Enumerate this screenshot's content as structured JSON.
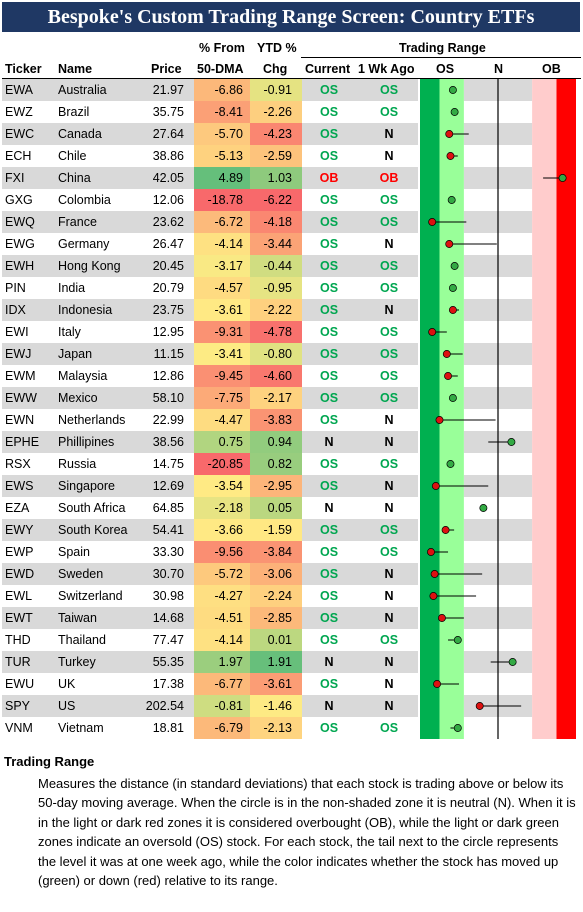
{
  "title": "Bespoke's Custom Trading Range Screen: Country ETFs",
  "headers": {
    "ticker": "Ticker",
    "name": "Name",
    "price": "Price",
    "from50_top": "% From",
    "from50_bottom": "50-DMA",
    "ytd_top": "YTD %",
    "ytd_bottom": "Chg",
    "range_group": "Trading Range",
    "current": "Current",
    "wk_ago": "1 Wk Ago",
    "os": "OS",
    "n": "N",
    "ob": "OB"
  },
  "colors": {
    "title_bg": "#1f3864",
    "dark_green": "#00b050",
    "light_green": "#99ff99",
    "light_red": "#ffcccc",
    "dark_red": "#ff0000",
    "dot_up": "#33aa44",
    "dot_down": "#dd1111",
    "os_text": "#00a650",
    "ob_text": "#ff0000",
    "row_shade": "#d9d9d9"
  },
  "chart_data": {
    "type": "table",
    "columns": [
      "Ticker",
      "Name",
      "Price",
      "% From 50-DMA",
      "YTD % Chg",
      "Current",
      "1 Wk Ago",
      "Trading Range Current",
      "Trading Range 1 Wk Ago"
    ],
    "range_axis": {
      "min": -3.2,
      "max": 3.2,
      "zones": {
        "dark_green": [
          -3.2,
          -2.4
        ],
        "light_green": [
          -2.4,
          -1.4
        ],
        "neutral": [
          -1.4,
          1.4
        ],
        "light_red": [
          1.4,
          2.4
        ],
        "dark_red": [
          2.4,
          3.2
        ]
      }
    },
    "rows": [
      {
        "ticker": "EWA",
        "name": "Australia",
        "price": "21.97",
        "from50": "-6.86",
        "ytd": "-0.91",
        "cur": "OS",
        "wk": "OS",
        "pos": -1.85,
        "wk_pos": -1.85
      },
      {
        "ticker": "EWZ",
        "name": "Brazil",
        "price": "35.75",
        "from50": "-8.41",
        "ytd": "-2.26",
        "cur": "OS",
        "wk": "OS",
        "pos": -1.78,
        "wk_pos": -1.78
      },
      {
        "ticker": "EWC",
        "name": "Canada",
        "price": "27.64",
        "from50": "-5.70",
        "ytd": "-4.23",
        "cur": "OS",
        "wk": "N",
        "pos": -2.0,
        "wk_pos": -1.2
      },
      {
        "ticker": "ECH",
        "name": "Chile",
        "price": "38.86",
        "from50": "-5.13",
        "ytd": "-2.59",
        "cur": "OS",
        "wk": "N",
        "pos": -1.95,
        "wk_pos": -1.65
      },
      {
        "ticker": "FXI",
        "name": "China",
        "price": "42.05",
        "from50": "4.89",
        "ytd": "1.03",
        "cur": "OB",
        "wk": "OB",
        "pos": 2.65,
        "wk_pos": 1.85
      },
      {
        "ticker": "GXG",
        "name": "Colombia",
        "price": "12.06",
        "from50": "-18.78",
        "ytd": "-6.22",
        "cur": "OS",
        "wk": "OS",
        "pos": -1.9,
        "wk_pos": -1.9
      },
      {
        "ticker": "EWQ",
        "name": "France",
        "price": "23.62",
        "from50": "-6.72",
        "ytd": "-4.18",
        "cur": "OS",
        "wk": "OS",
        "pos": -2.7,
        "wk_pos": -1.3
      },
      {
        "ticker": "EWG",
        "name": "Germany",
        "price": "26.47",
        "from50": "-4.14",
        "ytd": "-3.44",
        "cur": "OS",
        "wk": "N",
        "pos": -2.0,
        "wk_pos": -0.05
      },
      {
        "ticker": "EWH",
        "name": "Hong Kong",
        "price": "20.45",
        "from50": "-3.17",
        "ytd": "-0.44",
        "cur": "OS",
        "wk": "OS",
        "pos": -1.78,
        "wk_pos": -1.78
      },
      {
        "ticker": "PIN",
        "name": "India",
        "price": "20.79",
        "from50": "-4.57",
        "ytd": "-0.95",
        "cur": "OS",
        "wk": "OS",
        "pos": -1.85,
        "wk_pos": -1.85
      },
      {
        "ticker": "IDX",
        "name": "Indonesia",
        "price": "23.75",
        "from50": "-3.61",
        "ytd": "-2.22",
        "cur": "OS",
        "wk": "N",
        "pos": -1.85,
        "wk_pos": -1.6
      },
      {
        "ticker": "EWI",
        "name": "Italy",
        "price": "12.95",
        "from50": "-9.31",
        "ytd": "-4.78",
        "cur": "OS",
        "wk": "OS",
        "pos": -2.7,
        "wk_pos": -2.1
      },
      {
        "ticker": "EWJ",
        "name": "Japan",
        "price": "11.15",
        "from50": "-3.41",
        "ytd": "-0.80",
        "cur": "OS",
        "wk": "OS",
        "pos": -2.1,
        "wk_pos": -1.45
      },
      {
        "ticker": "EWM",
        "name": "Malaysia",
        "price": "12.86",
        "from50": "-9.45",
        "ytd": "-4.60",
        "cur": "OS",
        "wk": "OS",
        "pos": -2.05,
        "wk_pos": -1.65
      },
      {
        "ticker": "EWW",
        "name": "Mexico",
        "price": "58.10",
        "from50": "-7.75",
        "ytd": "-2.17",
        "cur": "OS",
        "wk": "OS",
        "pos": -1.85,
        "wk_pos": -1.85
      },
      {
        "ticker": "EWN",
        "name": "Netherlands",
        "price": "22.99",
        "from50": "-4.47",
        "ytd": "-3.83",
        "cur": "OS",
        "wk": "N",
        "pos": -2.4,
        "wk_pos": -0.1
      },
      {
        "ticker": "EPHE",
        "name": "Phillipines",
        "price": "38.56",
        "from50": "0.75",
        "ytd": "0.94",
        "cur": "N",
        "wk": "N",
        "pos": 0.55,
        "wk_pos": -0.4
      },
      {
        "ticker": "RSX",
        "name": "Russia",
        "price": "14.75",
        "from50": "-20.85",
        "ytd": "0.82",
        "cur": "OS",
        "wk": "OS",
        "pos": -1.95,
        "wk_pos": -1.95
      },
      {
        "ticker": "EWS",
        "name": "Singapore",
        "price": "12.69",
        "from50": "-3.54",
        "ytd": "-2.95",
        "cur": "OS",
        "wk": "N",
        "pos": -2.55,
        "wk_pos": -0.4
      },
      {
        "ticker": "EZA",
        "name": "South Africa",
        "price": "64.85",
        "from50": "-2.18",
        "ytd": "0.05",
        "cur": "N",
        "wk": "N",
        "pos": -0.6,
        "wk_pos": -0.6
      },
      {
        "ticker": "EWY",
        "name": "South Korea",
        "price": "54.41",
        "from50": "-3.66",
        "ytd": "-1.59",
        "cur": "OS",
        "wk": "OS",
        "pos": -2.15,
        "wk_pos": -1.8
      },
      {
        "ticker": "EWP",
        "name": "Spain",
        "price": "33.30",
        "from50": "-9.56",
        "ytd": "-3.84",
        "cur": "OS",
        "wk": "OS",
        "pos": -2.75,
        "wk_pos": -2.05
      },
      {
        "ticker": "EWD",
        "name": "Sweden",
        "price": "30.70",
        "from50": "-5.72",
        "ytd": "-3.06",
        "cur": "OS",
        "wk": "N",
        "pos": -2.6,
        "wk_pos": -0.65
      },
      {
        "ticker": "EWL",
        "name": "Switzerland",
        "price": "30.98",
        "from50": "-4.27",
        "ytd": "-2.24",
        "cur": "OS",
        "wk": "N",
        "pos": -2.65,
        "wk_pos": -0.9
      },
      {
        "ticker": "EWT",
        "name": "Taiwan",
        "price": "14.68",
        "from50": "-4.51",
        "ytd": "-2.85",
        "cur": "OS",
        "wk": "N",
        "pos": -2.3,
        "wk_pos": -1.4
      },
      {
        "ticker": "THD",
        "name": "Thailand",
        "price": "77.47",
        "from50": "-4.14",
        "ytd": "0.01",
        "cur": "OS",
        "wk": "OS",
        "pos": -1.65,
        "wk_pos": -2.05
      },
      {
        "ticker": "TUR",
        "name": "Turkey",
        "price": "55.35",
        "from50": "1.97",
        "ytd": "1.91",
        "cur": "N",
        "wk": "N",
        "pos": 0.6,
        "wk_pos": -0.3
      },
      {
        "ticker": "EWU",
        "name": "UK",
        "price": "17.38",
        "from50": "-6.77",
        "ytd": "-3.61",
        "cur": "OS",
        "wk": "N",
        "pos": -2.5,
        "wk_pos": -1.6
      },
      {
        "ticker": "SPY",
        "name": "US",
        "price": "202.54",
        "from50": "-0.81",
        "ytd": "-1.46",
        "cur": "N",
        "wk": "N",
        "pos": -0.75,
        "wk_pos": 0.95
      },
      {
        "ticker": "VNM",
        "name": "Vietnam",
        "price": "18.81",
        "from50": "-6.79",
        "ytd": "-2.13",
        "cur": "OS",
        "wk": "OS",
        "pos": -1.65,
        "wk_pos": -1.95
      }
    ]
  },
  "notes": {
    "heading": "Trading Range",
    "body": "Measures the distance (in standard deviations) that each stock is trading above or below its 50-day moving average.  When the circle is in the non-shaded zone it is neutral (N).  When it is in the light or dark red zones it is considered overbought (OB), while the light or dark green zones indicate an oversold (OS) stock.  For each stock, the tail next to the circle represents the level it was at one week ago, while the color indicates whether the stock has moved up (green) or down (red) relative to its range."
  }
}
